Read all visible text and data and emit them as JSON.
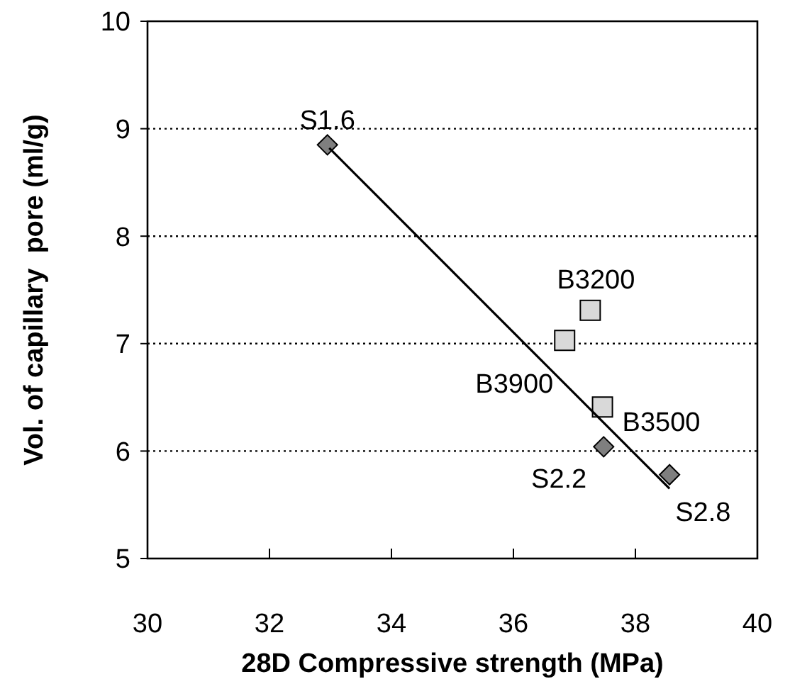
{
  "chart_data": {
    "type": "scatter",
    "xlabel": "28D Compressive strength (MPa)",
    "ylabel": "Vol. of capillary  pore (ml/g)",
    "xlim": [
      30,
      40
    ],
    "xticks": [
      30,
      32,
      34,
      36,
      38,
      40
    ],
    "ylim": [
      5,
      10
    ],
    "yticks": [
      5,
      6,
      7,
      8,
      9,
      10
    ],
    "grid": "y",
    "series": [
      {
        "color": "#7f7f7f",
        "marker": "diamond",
        "x": [
          32.95,
          37.48,
          38.56
        ],
        "values": [
          8.85,
          6.04,
          5.78
        ]
      },
      {
        "color": "#d9d9d9",
        "marker": "square",
        "x": [
          37.26,
          36.84,
          37.46
        ],
        "values": [
          7.31,
          7.03,
          6.41
        ]
      },
      {
        "type": "line",
        "color": "#000000",
        "marker": "none",
        "x": [
          32.98,
          38.56
        ],
        "values": [
          8.82,
          5.65
        ]
      }
    ],
    "annotations": [
      {
        "text": "S1.6",
        "x": 32.95,
        "y": 8.85
      },
      {
        "text": "S2.2",
        "x": 37.48,
        "y": 6.04
      },
      {
        "text": "S2.8",
        "x": 38.56,
        "y": 5.78
      },
      {
        "text": "B3200",
        "x": 37.26,
        "y": 7.31
      },
      {
        "text": "B3900",
        "x": 36.84,
        "y": 7.03
      },
      {
        "text": "B3500",
        "x": 37.46,
        "y": 6.41
      }
    ]
  }
}
